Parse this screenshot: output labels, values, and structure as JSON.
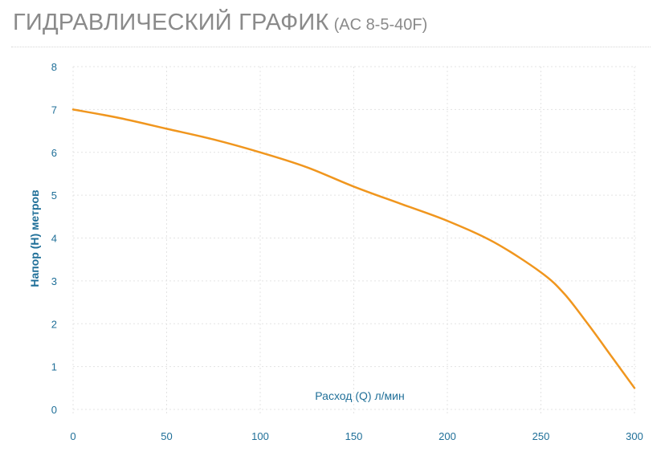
{
  "page": {
    "title_main": "ГИДРАВЛИЧЕСКИЙ ГРАФИК",
    "title_model": "(AC 8-5-40F)"
  },
  "colors": {
    "curve": "#f0961e",
    "axis_text": "#1f6f98",
    "grid": "#e3e3e3",
    "title": "#8a8a8a"
  },
  "chart_data": {
    "type": "line",
    "title": "",
    "xlabel": "Расход (Q) л/мин",
    "ylabel": "Напор (H) метров",
    "xlim": [
      0,
      300
    ],
    "ylim": [
      0,
      8
    ],
    "x_ticks": [
      0,
      50,
      100,
      150,
      200,
      250,
      300
    ],
    "y_ticks": [
      0,
      1,
      2,
      3,
      4,
      5,
      6,
      7,
      8
    ],
    "grid": true,
    "series": [
      {
        "x": [
          0,
          25,
          50,
          75,
          100,
          125,
          150,
          175,
          200,
          225,
          250,
          262.5,
          275,
          287.5,
          300
        ],
        "y": [
          7.0,
          6.8,
          6.55,
          6.3,
          6.0,
          5.65,
          5.2,
          4.8,
          4.4,
          3.9,
          3.2,
          2.7,
          2.0,
          1.25,
          0.5
        ]
      }
    ]
  }
}
